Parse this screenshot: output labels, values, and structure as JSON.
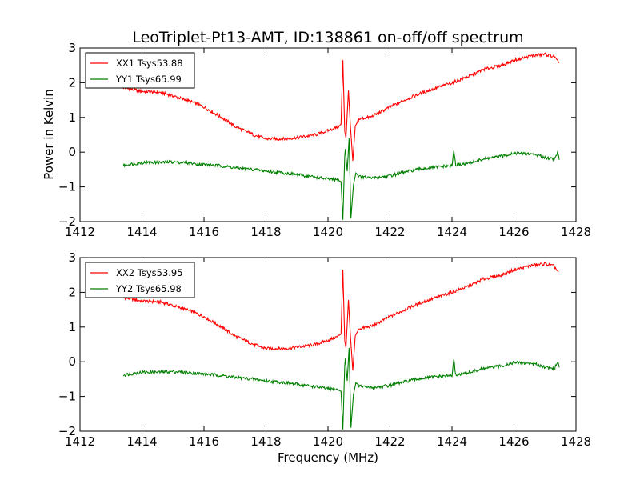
{
  "figure": {
    "title": "LeoTriplet-Pt13-AMT, ID:138861 on-off/off spectrum",
    "ylabel": "Power in Kelvin",
    "xlabel": "Frequency (MHz)"
  },
  "chart_data": [
    {
      "type": "line",
      "title": "LeoTriplet-Pt13-AMT, ID:138861 on-off/off spectrum",
      "xlabel": "",
      "ylabel": "Power in Kelvin",
      "xlim": [
        1412,
        1428
      ],
      "ylim": [
        -2,
        3
      ],
      "xticks": [
        1412,
        1414,
        1416,
        1418,
        1420,
        1422,
        1424,
        1426,
        1428
      ],
      "yticks": [
        -2,
        -1,
        0,
        1,
        2,
        3
      ],
      "grid": false,
      "legend_position": "top-left",
      "series": [
        {
          "name": "XX1 Tsys53.88",
          "color": "#ff0000",
          "points": [
            [
              1413.4,
              1.85
            ],
            [
              1414.0,
              1.75
            ],
            [
              1414.6,
              1.72
            ],
            [
              1415.0,
              1.62
            ],
            [
              1415.6,
              1.45
            ],
            [
              1416.0,
              1.3
            ],
            [
              1416.6,
              0.98
            ],
            [
              1417.0,
              0.74
            ],
            [
              1417.6,
              0.5
            ],
            [
              1418.0,
              0.38
            ],
            [
              1418.6,
              0.38
            ],
            [
              1419.0,
              0.42
            ],
            [
              1419.6,
              0.5
            ],
            [
              1420.0,
              0.62
            ],
            [
              1420.3,
              0.72
            ],
            [
              1420.42,
              0.8
            ],
            [
              1420.48,
              2.65
            ],
            [
              1420.54,
              0.6
            ],
            [
              1420.58,
              0.4
            ],
            [
              1420.66,
              1.78
            ],
            [
              1420.72,
              0.8
            ],
            [
              1420.8,
              -0.25
            ],
            [
              1420.88,
              0.75
            ],
            [
              1421.0,
              0.95
            ],
            [
              1421.4,
              1.02
            ],
            [
              1422.0,
              1.3
            ],
            [
              1422.6,
              1.55
            ],
            [
              1423.0,
              1.7
            ],
            [
              1423.6,
              1.88
            ],
            [
              1424.0,
              2.0
            ],
            [
              1424.6,
              2.2
            ],
            [
              1425.0,
              2.38
            ],
            [
              1425.6,
              2.5
            ],
            [
              1426.0,
              2.65
            ],
            [
              1426.6,
              2.78
            ],
            [
              1427.0,
              2.82
            ],
            [
              1427.3,
              2.75
            ],
            [
              1427.45,
              2.55
            ]
          ]
        },
        {
          "name": "YY1 Tsys65.99",
          "color": "#008000",
          "points": [
            [
              1413.4,
              -0.38
            ],
            [
              1414.0,
              -0.3
            ],
            [
              1414.6,
              -0.3
            ],
            [
              1415.0,
              -0.28
            ],
            [
              1415.6,
              -0.32
            ],
            [
              1416.0,
              -0.35
            ],
            [
              1416.6,
              -0.4
            ],
            [
              1417.0,
              -0.45
            ],
            [
              1417.6,
              -0.5
            ],
            [
              1418.0,
              -0.55
            ],
            [
              1418.6,
              -0.6
            ],
            [
              1419.0,
              -0.65
            ],
            [
              1419.6,
              -0.72
            ],
            [
              1420.0,
              -0.78
            ],
            [
              1420.3,
              -0.8
            ],
            [
              1420.42,
              -0.85
            ],
            [
              1420.48,
              -1.95
            ],
            [
              1420.55,
              0.2
            ],
            [
              1420.62,
              -0.55
            ],
            [
              1420.68,
              0.4
            ],
            [
              1420.74,
              -1.9
            ],
            [
              1420.82,
              -0.95
            ],
            [
              1420.9,
              -0.6
            ],
            [
              1421.0,
              -0.7
            ],
            [
              1421.4,
              -0.75
            ],
            [
              1422.0,
              -0.68
            ],
            [
              1422.6,
              -0.55
            ],
            [
              1423.0,
              -0.48
            ],
            [
              1423.6,
              -0.42
            ],
            [
              1424.0,
              -0.4
            ],
            [
              1424.06,
              0.05
            ],
            [
              1424.12,
              -0.38
            ],
            [
              1424.6,
              -0.3
            ],
            [
              1425.0,
              -0.2
            ],
            [
              1425.6,
              -0.12
            ],
            [
              1426.0,
              -0.02
            ],
            [
              1426.6,
              -0.05
            ],
            [
              1427.0,
              -0.15
            ],
            [
              1427.3,
              -0.2
            ],
            [
              1427.42,
              0.0
            ],
            [
              1427.46,
              -0.18
            ]
          ]
        }
      ]
    },
    {
      "type": "line",
      "title": "",
      "xlabel": "Frequency (MHz)",
      "ylabel": "",
      "xlim": [
        1412,
        1428
      ],
      "ylim": [
        -2,
        3
      ],
      "xticks": [
        1412,
        1414,
        1416,
        1418,
        1420,
        1422,
        1424,
        1426,
        1428
      ],
      "yticks": [
        -2,
        -1,
        0,
        1,
        2,
        3
      ],
      "grid": false,
      "legend_position": "top-left",
      "series": [
        {
          "name": "XX2 Tsys53.95",
          "color": "#ff0000",
          "points": [
            [
              1413.4,
              1.85
            ],
            [
              1414.0,
              1.75
            ],
            [
              1414.6,
              1.72
            ],
            [
              1415.0,
              1.62
            ],
            [
              1415.6,
              1.45
            ],
            [
              1416.0,
              1.3
            ],
            [
              1416.6,
              0.98
            ],
            [
              1417.0,
              0.74
            ],
            [
              1417.6,
              0.5
            ],
            [
              1418.0,
              0.38
            ],
            [
              1418.6,
              0.38
            ],
            [
              1419.0,
              0.42
            ],
            [
              1419.6,
              0.5
            ],
            [
              1420.0,
              0.62
            ],
            [
              1420.3,
              0.72
            ],
            [
              1420.42,
              0.8
            ],
            [
              1420.48,
              2.65
            ],
            [
              1420.54,
              0.6
            ],
            [
              1420.58,
              0.4
            ],
            [
              1420.66,
              1.78
            ],
            [
              1420.72,
              0.8
            ],
            [
              1420.8,
              -0.25
            ],
            [
              1420.88,
              0.75
            ],
            [
              1421.0,
              0.95
            ],
            [
              1421.4,
              1.02
            ],
            [
              1422.0,
              1.3
            ],
            [
              1422.6,
              1.55
            ],
            [
              1423.0,
              1.7
            ],
            [
              1423.6,
              1.88
            ],
            [
              1424.0,
              2.0
            ],
            [
              1424.6,
              2.2
            ],
            [
              1425.0,
              2.38
            ],
            [
              1425.6,
              2.5
            ],
            [
              1426.0,
              2.65
            ],
            [
              1426.6,
              2.78
            ],
            [
              1427.0,
              2.82
            ],
            [
              1427.3,
              2.75
            ],
            [
              1427.45,
              2.55
            ]
          ]
        },
        {
          "name": "YY2 Tsys65.98",
          "color": "#008000",
          "points": [
            [
              1413.4,
              -0.38
            ],
            [
              1414.0,
              -0.3
            ],
            [
              1414.6,
              -0.3
            ],
            [
              1415.0,
              -0.28
            ],
            [
              1415.6,
              -0.32
            ],
            [
              1416.0,
              -0.35
            ],
            [
              1416.6,
              -0.4
            ],
            [
              1417.0,
              -0.45
            ],
            [
              1417.6,
              -0.5
            ],
            [
              1418.0,
              -0.55
            ],
            [
              1418.6,
              -0.6
            ],
            [
              1419.0,
              -0.65
            ],
            [
              1419.6,
              -0.72
            ],
            [
              1420.0,
              -0.78
            ],
            [
              1420.3,
              -0.8
            ],
            [
              1420.42,
              -0.85
            ],
            [
              1420.48,
              -1.95
            ],
            [
              1420.55,
              0.2
            ],
            [
              1420.62,
              -0.55
            ],
            [
              1420.68,
              0.4
            ],
            [
              1420.74,
              -1.9
            ],
            [
              1420.82,
              -0.95
            ],
            [
              1420.9,
              -0.6
            ],
            [
              1421.0,
              -0.7
            ],
            [
              1421.4,
              -0.75
            ],
            [
              1422.0,
              -0.68
            ],
            [
              1422.6,
              -0.55
            ],
            [
              1423.0,
              -0.48
            ],
            [
              1423.6,
              -0.42
            ],
            [
              1424.0,
              -0.4
            ],
            [
              1424.06,
              0.05
            ],
            [
              1424.12,
              -0.38
            ],
            [
              1424.6,
              -0.3
            ],
            [
              1425.0,
              -0.2
            ],
            [
              1425.6,
              -0.12
            ],
            [
              1426.0,
              -0.02
            ],
            [
              1426.6,
              -0.05
            ],
            [
              1427.0,
              -0.15
            ],
            [
              1427.3,
              -0.2
            ],
            [
              1427.42,
              0.0
            ],
            [
              1427.46,
              -0.18
            ]
          ]
        }
      ]
    }
  ]
}
